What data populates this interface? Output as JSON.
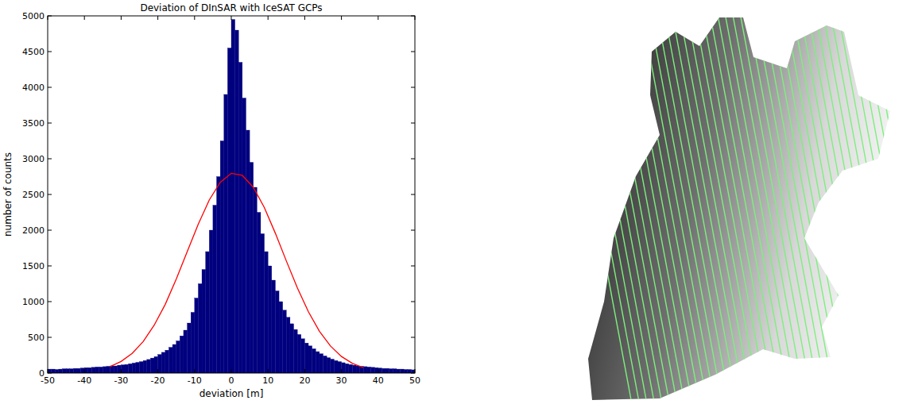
{
  "chart_data": {
    "type": "histogram",
    "title": "Deviation of DInSAR with IceSAT GCPs",
    "x_label": "deviation [m]",
    "y_label": "number of counts",
    "color": "#00007f",
    "bins": [
      -50,
      -49,
      -48,
      -47,
      -46,
      -45,
      -44,
      -43,
      -42,
      -41,
      -40,
      -39,
      -38,
      -37,
      -36,
      -35,
      -34,
      -33,
      -32,
      -31,
      -30,
      -29,
      -28,
      -27,
      -26,
      -25,
      -24,
      -23,
      -22,
      -21,
      -20,
      -19,
      -18,
      -17,
      -16,
      -15,
      -14,
      -13,
      -12,
      -11,
      -10,
      -9,
      -8,
      -7,
      -6,
      -5,
      -4,
      -3,
      -2,
      -1,
      0,
      1,
      2,
      3,
      4,
      5,
      6,
      7,
      8,
      9,
      10,
      11,
      12,
      13,
      14,
      15,
      16,
      17,
      18,
      19,
      20,
      21,
      22,
      23,
      24,
      25,
      26,
      27,
      28,
      29,
      30,
      31,
      32,
      33,
      34,
      35,
      36,
      37,
      38,
      39,
      40,
      41,
      42,
      43,
      44,
      45,
      46,
      47,
      48,
      49,
      50
    ],
    "values": [
      55,
      55,
      50,
      55,
      60,
      60,
      60,
      65,
      65,
      70,
      75,
      75,
      80,
      85,
      85,
      90,
      95,
      100,
      100,
      110,
      115,
      120,
      130,
      140,
      150,
      160,
      175,
      190,
      210,
      230,
      260,
      290,
      320,
      360,
      400,
      450,
      520,
      600,
      700,
      850,
      1050,
      1250,
      1450,
      1700,
      2000,
      2350,
      2750,
      3250,
      3900,
      4550,
      4950,
      4800,
      4350,
      3850,
      3400,
      2950,
      2600,
      2250,
      1950,
      1700,
      1500,
      1300,
      1150,
      1000,
      880,
      780,
      690,
      610,
      540,
      480,
      420,
      380,
      340,
      300,
      270,
      240,
      215,
      195,
      175,
      160,
      145,
      130,
      120,
      110,
      100,
      95,
      90,
      85,
      80,
      75,
      70,
      65,
      65,
      60,
      60,
      55,
      55,
      50,
      50,
      45
    ],
    "fit": {
      "type": "line",
      "color": "#ff0000",
      "x": [
        -33,
        -30,
        -27,
        -24,
        -21,
        -18,
        -15,
        -12,
        -9,
        -6,
        -3,
        0,
        3,
        6,
        9,
        12,
        15,
        18,
        21,
        24,
        27,
        30,
        33,
        36
      ],
      "values": [
        90,
        163,
        275,
        440,
        670,
        960,
        1313,
        1700,
        2083,
        2422,
        2670,
        2796,
        2767,
        2600,
        2317,
        1957,
        1568,
        1191,
        858,
        585,
        379,
        232,
        135,
        75
      ]
    },
    "xlim": [
      -50,
      50
    ],
    "ylim": [
      0,
      5000
    ],
    "xticks": [
      -50,
      -40,
      -30,
      -20,
      -10,
      0,
      10,
      20,
      30,
      40,
      50
    ],
    "yticks": [
      0,
      500,
      1000,
      1500,
      2000,
      2500,
      3000,
      3500,
      4000,
      4500,
      5000
    ],
    "grid": false
  }
}
